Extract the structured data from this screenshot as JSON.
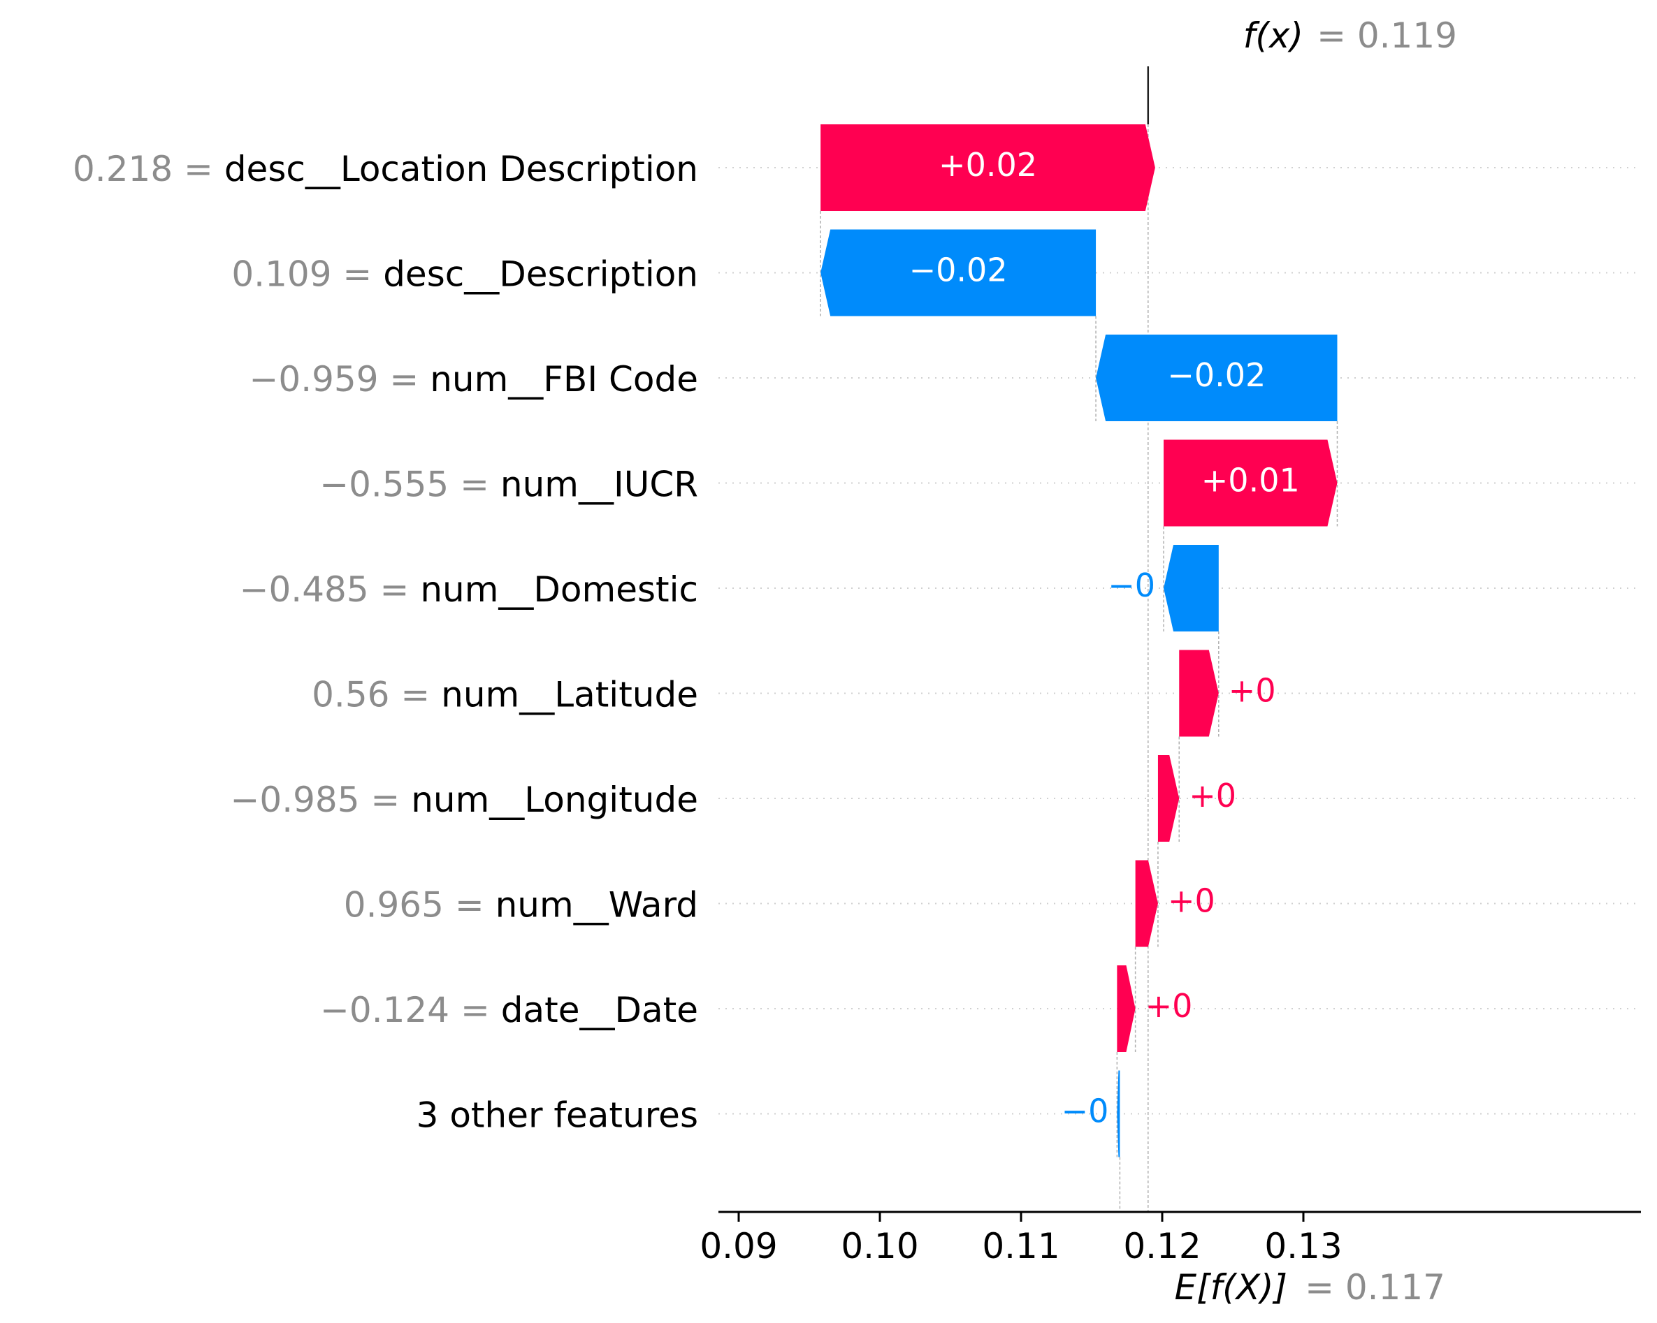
{
  "chart_data": {
    "type": "bar",
    "subtype": "waterfall",
    "base_value": 0.117,
    "final_value": 0.119,
    "annotations": {
      "fx_label": "f(x)",
      "fx_value": "= 0.119",
      "ex_label": "E[f(X)]",
      "ex_value": "= 0.117"
    },
    "xlim": [
      0.089,
      0.1375
    ],
    "x_ticks": [
      {
        "value": 0.09,
        "label": "0.09"
      },
      {
        "value": 0.1,
        "label": "0.10"
      },
      {
        "value": 0.11,
        "label": "0.11"
      },
      {
        "value": 0.12,
        "label": "0.12"
      },
      {
        "value": 0.13,
        "label": "0.13"
      }
    ],
    "features": [
      {
        "value_text": "0.218 =",
        "name": "desc__Location Description",
        "start": 0.0958,
        "end": 0.1195,
        "label": "+0.02"
      },
      {
        "value_text": "0.109 =",
        "name": "desc__Description",
        "start": 0.1153,
        "end": 0.0958,
        "label": "−0.02"
      },
      {
        "value_text": "−0.959 =",
        "name": "num__FBI Code",
        "start": 0.1324,
        "end": 0.1153,
        "label": "−0.02"
      },
      {
        "value_text": "−0.555 =",
        "name": "num__IUCR",
        "start": 0.1201,
        "end": 0.1324,
        "label": "+0.01"
      },
      {
        "value_text": "−0.485 =",
        "name": "num__Domestic",
        "start": 0.124,
        "end": 0.1201,
        "label": "−0"
      },
      {
        "value_text": "0.56 =",
        "name": "num__Latitude",
        "start": 0.1212,
        "end": 0.124,
        "label": "+0"
      },
      {
        "value_text": "−0.985 =",
        "name": "num__Longitude",
        "start": 0.1197,
        "end": 0.1212,
        "label": "+0"
      },
      {
        "value_text": "0.965 =",
        "name": "num__Ward",
        "start": 0.1181,
        "end": 0.1197,
        "label": "+0"
      },
      {
        "value_text": "−0.124 =",
        "name": "date__Date",
        "start": 0.1168,
        "end": 0.1181,
        "label": "+0"
      },
      {
        "value_text": "",
        "name": "3 other features",
        "start": 0.117,
        "end": 0.1168,
        "label": "−0"
      }
    ],
    "colors": {
      "positive": "#ff0051",
      "negative": "#008bfb",
      "value_text": "#8c8c8c",
      "guide_line": "#b0b0b0"
    }
  }
}
